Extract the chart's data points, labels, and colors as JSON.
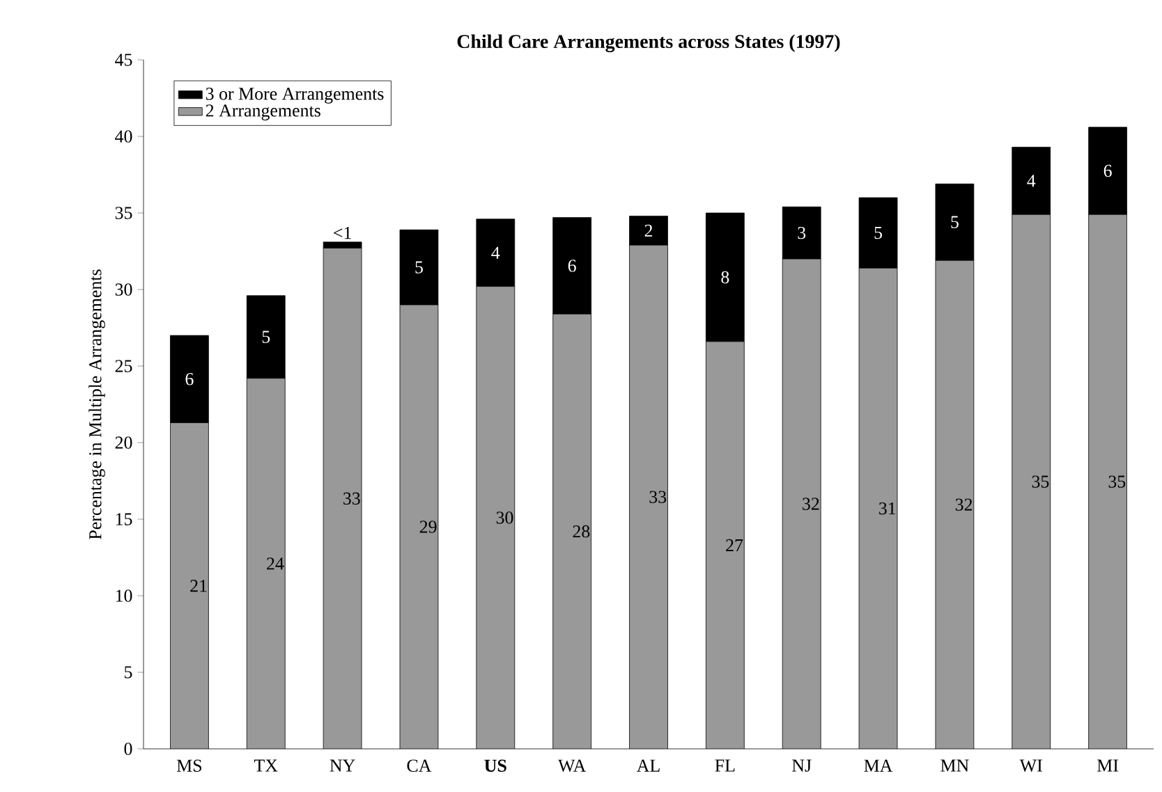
{
  "chart_data": {
    "type": "bar",
    "stacked": true,
    "title": "Child Care Arrangements across States (1997)",
    "ylabel": "Percentage  in Multiple Arrangements",
    "categories": [
      "MS",
      "TX",
      "NY",
      "CA",
      "**US**",
      "WA",
      "AL",
      "FL",
      "NJ",
      "MA",
      "MN",
      "WI",
      "MI"
    ],
    "series": [
      {
        "name": "2 Arrangements",
        "color": "#999999",
        "values": [
          21.3,
          24.2,
          32.7,
          29.0,
          30.2,
          28.4,
          32.9,
          26.6,
          32.0,
          31.4,
          31.9,
          34.9,
          34.9
        ],
        "value_labels": [
          "21",
          "24",
          "33",
          "29",
          "30",
          "28",
          "33",
          "27",
          "32",
          "31",
          "32",
          "35",
          "35"
        ]
      },
      {
        "name": "3 or More Arrangements",
        "color": "#000000",
        "values": [
          5.7,
          5.4,
          0.4,
          4.9,
          4.4,
          6.3,
          1.9,
          8.4,
          3.4,
          4.6,
          5.0,
          4.4,
          5.7
        ],
        "value_labels": [
          "6",
          "5",
          "<1",
          "5",
          "4",
          "6",
          "2",
          "8",
          "3",
          "5",
          "5",
          "4",
          "6"
        ]
      }
    ],
    "ylim": [
      0,
      45
    ],
    "yticks": [
      0,
      5,
      10,
      15,
      20,
      25,
      30,
      35,
      40,
      45
    ],
    "legend": "top left",
    "grid": false
  }
}
